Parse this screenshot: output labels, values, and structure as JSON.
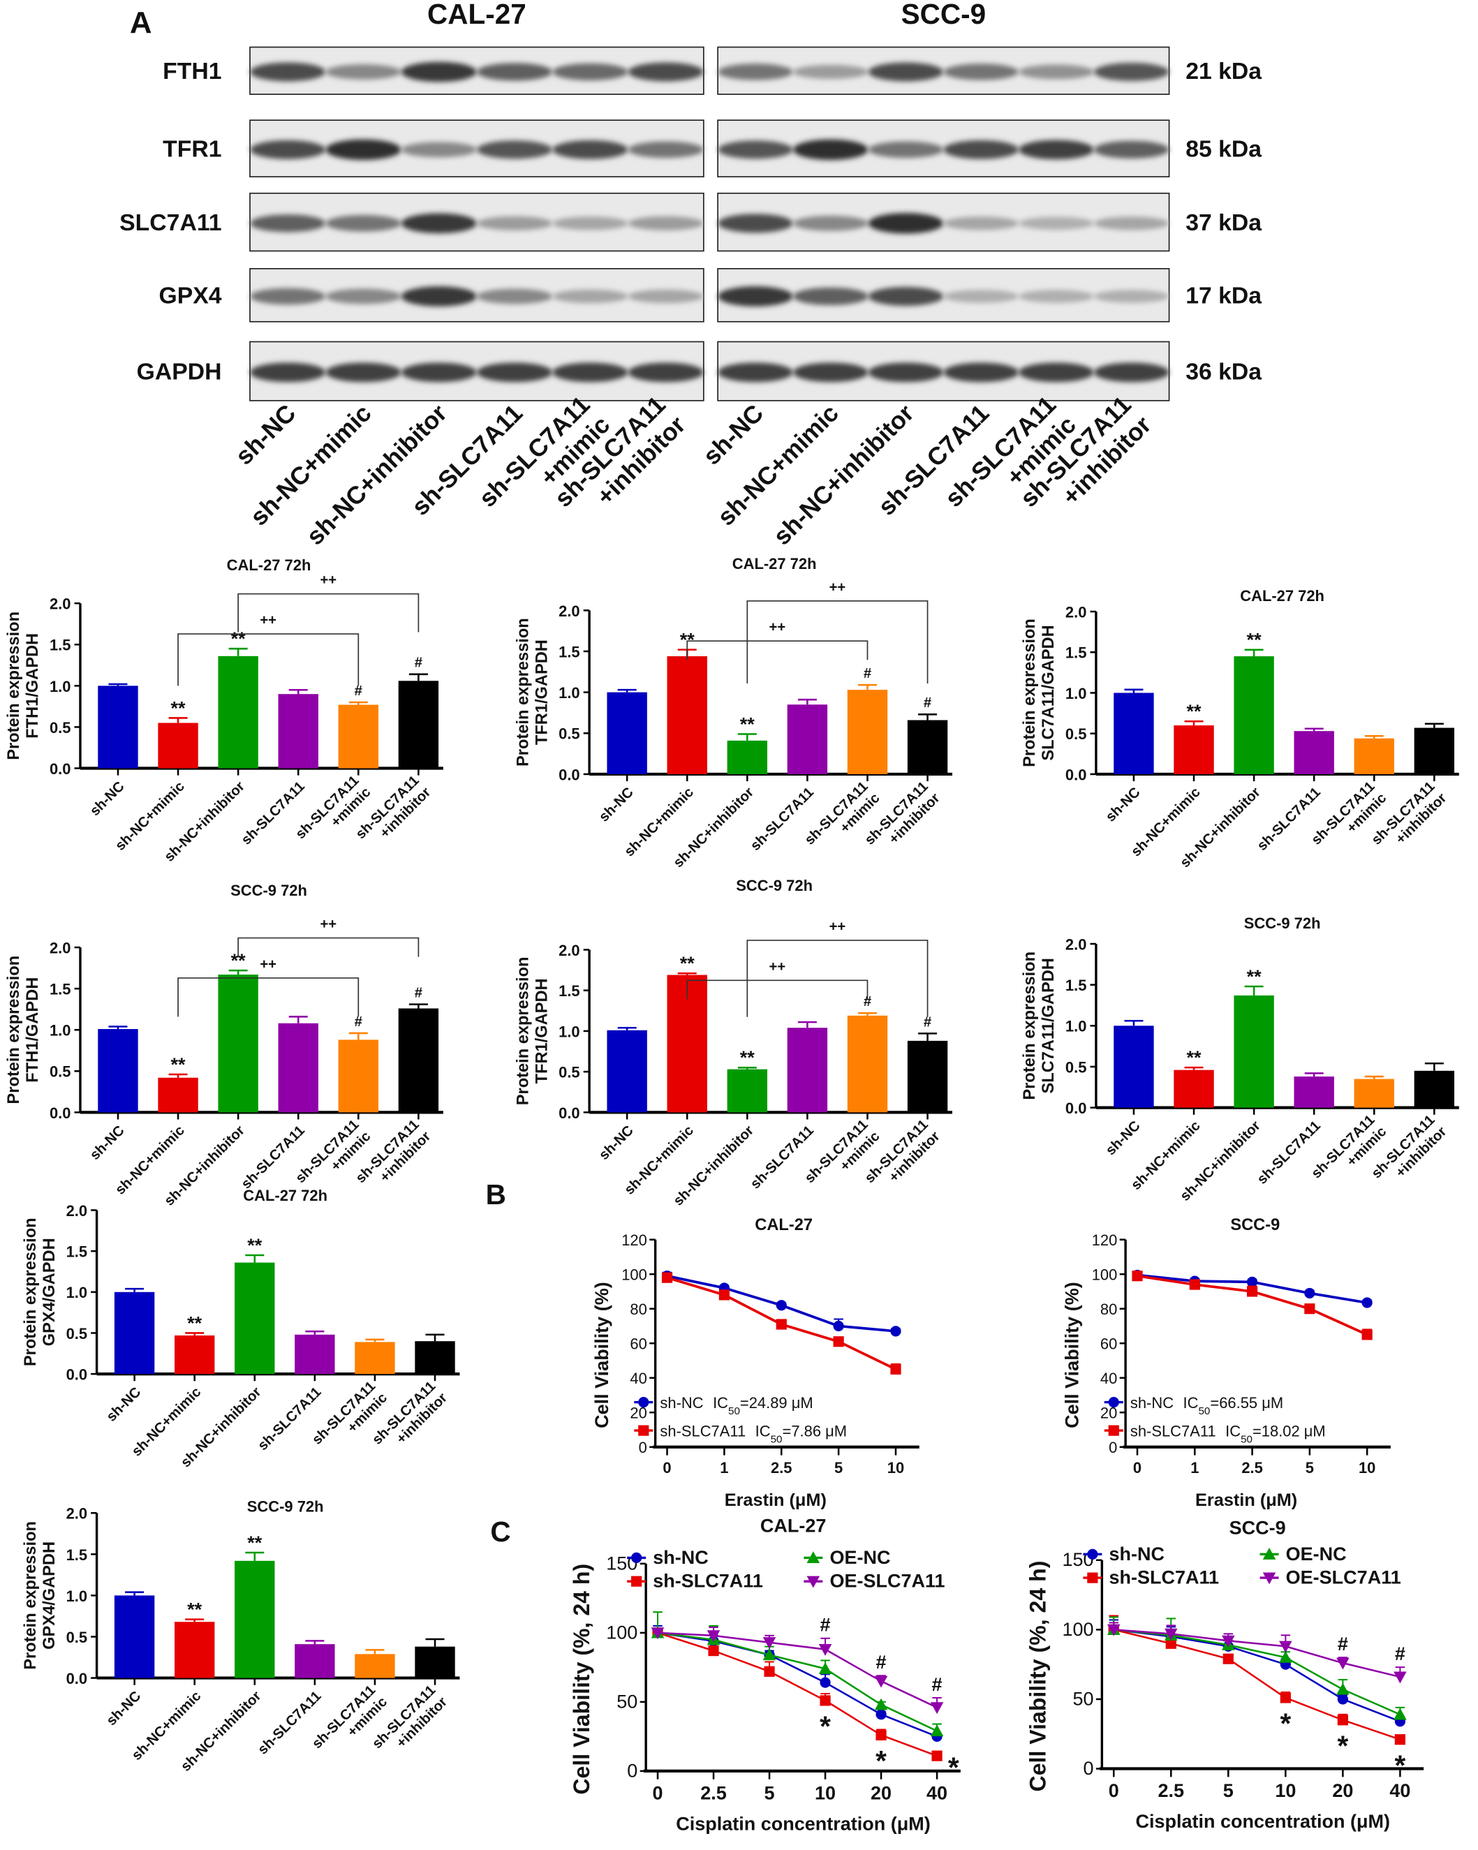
{
  "panel_labels": {
    "a": "A",
    "b": "B",
    "c": "C"
  },
  "blot": {
    "cell_lines": [
      "CAL-27",
      "SCC-9"
    ],
    "lanes": [
      [
        "sh-NC"
      ],
      [
        "sh-NC+mimic"
      ],
      [
        "sh-NC+inhibitor"
      ],
      [
        "sh-SLC7A11"
      ],
      [
        "sh-SLC7A11",
        "+mimic"
      ],
      [
        "sh-SLC7A11",
        "+inhibitor"
      ]
    ],
    "rows": [
      {
        "protein": "FTH1",
        "size": "21 kDa",
        "intensity": [
          [
            0.8,
            0.5,
            0.9,
            0.7,
            0.65,
            0.8
          ],
          [
            0.6,
            0.4,
            0.8,
            0.6,
            0.45,
            0.75
          ]
        ]
      },
      {
        "protein": "TFR1",
        "size": "85 kDa",
        "intensity": [
          [
            0.8,
            0.95,
            0.5,
            0.75,
            0.8,
            0.6
          ],
          [
            0.75,
            0.95,
            0.6,
            0.8,
            0.85,
            0.7
          ]
        ]
      },
      {
        "protein": "SLC7A11",
        "size": "37 kDa",
        "intensity": [
          [
            0.7,
            0.6,
            0.9,
            0.4,
            0.35,
            0.4
          ],
          [
            0.8,
            0.5,
            0.95,
            0.35,
            0.3,
            0.35
          ]
        ]
      },
      {
        "protein": "GPX4",
        "size": "17 kDa",
        "intensity": [
          [
            0.6,
            0.5,
            0.9,
            0.5,
            0.35,
            0.35
          ],
          [
            0.9,
            0.7,
            0.8,
            0.3,
            0.3,
            0.3
          ]
        ]
      },
      {
        "protein": "GAPDH",
        "size": "36 kDa",
        "intensity": [
          [
            0.85,
            0.85,
            0.85,
            0.85,
            0.85,
            0.85
          ],
          [
            0.85,
            0.85,
            0.85,
            0.85,
            0.85,
            0.85
          ]
        ]
      }
    ]
  },
  "bar_colors": [
    "#0000c0",
    "#e60000",
    "#009a00",
    "#9000a8",
    "#ff8000",
    "#000000"
  ],
  "chart_data": [
    {
      "type": "bar",
      "title": "CAL-27 72h",
      "ylabel": [
        "Protein expression",
        "FTH1/GAPDH"
      ],
      "ylim": [
        0,
        2
      ],
      "yticks": [
        "0.0",
        "0.5",
        "1.0",
        "1.5",
        "2.0"
      ],
      "categories": [
        [
          "sh-NC"
        ],
        [
          "sh-NC+mimic"
        ],
        [
          "sh-NC+inhibitor"
        ],
        [
          "sh-SLC7A11"
        ],
        [
          "sh-SLC7A11",
          "+mimic"
        ],
        [
          "sh-SLC7A11",
          "+inhibitor"
        ]
      ],
      "values": [
        1.0,
        0.55,
        1.36,
        0.9,
        0.77,
        1.06
      ],
      "errors": [
        0.02,
        0.06,
        0.09,
        0.05,
        0.03,
        0.08
      ],
      "marks": [
        "",
        "**",
        "**",
        "",
        "#",
        "#"
      ],
      "brackets": [
        {
          "from": 1,
          "to": 4,
          "label": "++"
        },
        {
          "from": 2,
          "to": 5,
          "label": "++"
        }
      ]
    },
    {
      "type": "bar",
      "title": "CAL-27 72h",
      "ylabel": [
        "Protein expression",
        "TFR1/GAPDH"
      ],
      "ylim": [
        0,
        2
      ],
      "yticks": [
        "0.0",
        "0.5",
        "1.0",
        "1.5",
        "2.0"
      ],
      "categories": [
        [
          "sh-NC"
        ],
        [
          "sh-NC+mimic"
        ],
        [
          "sh-NC+inhibitor"
        ],
        [
          "sh-SLC7A11"
        ],
        [
          "sh-SLC7A11",
          "+mimic"
        ],
        [
          "sh-SLC7A11",
          "+inhibitor"
        ]
      ],
      "values": [
        1.0,
        1.44,
        0.41,
        0.85,
        1.03,
        0.66
      ],
      "errors": [
        0.03,
        0.08,
        0.08,
        0.06,
        0.06,
        0.07
      ],
      "marks": [
        "",
        "**",
        "**",
        "",
        "#",
        "#"
      ],
      "brackets": [
        {
          "from": 2,
          "to": 5,
          "label": "++"
        },
        {
          "from": 1,
          "to": 4,
          "label": "++"
        }
      ]
    },
    {
      "type": "bar",
      "title": "CAL-27 72h",
      "ylabel": [
        "Protein expression",
        "SLC7A11/GAPDH"
      ],
      "ylim": [
        0,
        2
      ],
      "yticks": [
        "0.0",
        "0.5",
        "1.0",
        "1.5",
        "2.0"
      ],
      "categories": [
        [
          "sh-NC"
        ],
        [
          "sh-NC+mimic"
        ],
        [
          "sh-NC+inhibitor"
        ],
        [
          "sh-SLC7A11"
        ],
        [
          "sh-SLC7A11",
          "+mimic"
        ],
        [
          "sh-SLC7A11",
          "+inhibitor"
        ]
      ],
      "values": [
        1.0,
        0.6,
        1.45,
        0.53,
        0.44,
        0.57
      ],
      "errors": [
        0.04,
        0.05,
        0.08,
        0.03,
        0.03,
        0.05
      ],
      "marks": [
        "",
        "**",
        "**",
        "",
        "",
        ""
      ],
      "brackets": []
    },
    {
      "type": "bar",
      "title": "SCC-9 72h",
      "ylabel": [
        "Protein expression",
        "FTH1/GAPDH"
      ],
      "ylim": [
        0,
        2
      ],
      "yticks": [
        "0.0",
        "0.5",
        "1.0",
        "1.5",
        "2.0"
      ],
      "categories": [
        [
          "sh-NC"
        ],
        [
          "sh-NC+mimic"
        ],
        [
          "sh-NC+inhibitor"
        ],
        [
          "sh-SLC7A11"
        ],
        [
          "sh-SLC7A11",
          "+mimic"
        ],
        [
          "sh-SLC7A11",
          "+inhibitor"
        ]
      ],
      "values": [
        1.01,
        0.42,
        1.67,
        1.08,
        0.88,
        1.26
      ],
      "errors": [
        0.03,
        0.04,
        0.05,
        0.08,
        0.08,
        0.05
      ],
      "marks": [
        "",
        "**",
        "**",
        "",
        "#",
        "#"
      ],
      "brackets": [
        {
          "from": 1,
          "to": 4,
          "label": "++"
        },
        {
          "from": 2,
          "to": 5,
          "label": "++"
        }
      ]
    },
    {
      "type": "bar",
      "title": "SCC-9 72h",
      "ylabel": [
        "Protein expression",
        "TFR1/GAPDH"
      ],
      "ylim": [
        0,
        2
      ],
      "yticks": [
        "0.0",
        "0.5",
        "1.0",
        "1.5",
        "2.0"
      ],
      "categories": [
        [
          "sh-NC"
        ],
        [
          "sh-NC+mimic"
        ],
        [
          "sh-NC+inhibitor"
        ],
        [
          "sh-SLC7A11"
        ],
        [
          "sh-SLC7A11",
          "+mimic"
        ],
        [
          "sh-SLC7A11",
          "+inhibitor"
        ]
      ],
      "values": [
        1.01,
        1.69,
        0.53,
        1.04,
        1.19,
        0.88
      ],
      "errors": [
        0.03,
        0.02,
        0.02,
        0.07,
        0.03,
        0.09
      ],
      "marks": [
        "",
        "**",
        "**",
        "",
        "#",
        "#"
      ],
      "brackets": [
        {
          "from": 2,
          "to": 5,
          "label": "++"
        },
        {
          "from": 1,
          "to": 4,
          "label": "++"
        }
      ]
    },
    {
      "type": "bar",
      "title": "SCC-9 72h",
      "ylabel": [
        "Protein expression",
        "SLC7A11/GAPDH"
      ],
      "ylim": [
        0,
        2
      ],
      "yticks": [
        "0.0",
        "0.5",
        "1.0",
        "1.5",
        "2.0"
      ],
      "categories": [
        [
          "sh-NC"
        ],
        [
          "sh-NC+mimic"
        ],
        [
          "sh-NC+inhibitor"
        ],
        [
          "sh-SLC7A11"
        ],
        [
          "sh-SLC7A11",
          "+mimic"
        ],
        [
          "sh-SLC7A11",
          "+inhibitor"
        ]
      ],
      "values": [
        1.0,
        0.46,
        1.37,
        0.38,
        0.35,
        0.45
      ],
      "errors": [
        0.06,
        0.03,
        0.11,
        0.04,
        0.03,
        0.09
      ],
      "marks": [
        "",
        "**",
        "**",
        "",
        "",
        ""
      ],
      "brackets": []
    },
    {
      "type": "bar",
      "title": "CAL-27 72h",
      "ylabel": [
        "Protein expression",
        "GPX4/GAPDH"
      ],
      "ylim": [
        0,
        2
      ],
      "yticks": [
        "0.0",
        "0.5",
        "1.0",
        "1.5",
        "2.0"
      ],
      "categories": [
        [
          "sh-NC"
        ],
        [
          "sh-NC+mimic"
        ],
        [
          "sh-NC+inhibitor"
        ],
        [
          "sh-SLC7A11"
        ],
        [
          "sh-SLC7A11",
          "+mimic"
        ],
        [
          "sh-SLC7A11",
          "+inhibitor"
        ]
      ],
      "values": [
        1.0,
        0.47,
        1.36,
        0.48,
        0.39,
        0.4
      ],
      "errors": [
        0.04,
        0.03,
        0.09,
        0.04,
        0.03,
        0.08
      ],
      "marks": [
        "",
        "**",
        "**",
        "",
        "",
        ""
      ],
      "brackets": []
    },
    {
      "type": "bar",
      "title": "SCC-9 72h",
      "ylabel": [
        "Protein expression",
        "GPX4/GAPDH"
      ],
      "ylim": [
        0,
        2
      ],
      "yticks": [
        "0.0",
        "0.5",
        "1.0",
        "1.5",
        "2.0"
      ],
      "categories": [
        [
          "sh-NC"
        ],
        [
          "sh-NC+mimic"
        ],
        [
          "sh-NC+inhibitor"
        ],
        [
          "sh-SLC7A11"
        ],
        [
          "sh-SLC7A11",
          "+mimic"
        ],
        [
          "sh-SLC7A11",
          "+inhibitor"
        ]
      ],
      "values": [
        1.0,
        0.68,
        1.42,
        0.41,
        0.29,
        0.38
      ],
      "errors": [
        0.04,
        0.03,
        0.1,
        0.04,
        0.05,
        0.09
      ],
      "marks": [
        "",
        "**",
        "**",
        "",
        "",
        ""
      ],
      "brackets": []
    },
    {
      "type": "line",
      "title": "CAL-27",
      "ylabel": "Cell Viability (%)",
      "xlabel": "Erastin (μM)",
      "ylim": [
        0,
        120
      ],
      "yticks": [
        "0",
        "20",
        "40",
        "60",
        "80",
        "100",
        "120"
      ],
      "x": [
        "0",
        "1",
        "2.5",
        "5",
        "10"
      ],
      "series": [
        {
          "name": "sh-NC",
          "suffix": "=24.89 μM",
          "color": "#0000c0",
          "marker": "circle",
          "values": [
            99,
            92,
            82,
            70,
            67
          ],
          "errors": [
            2,
            1.5,
            1.5,
            4,
            1.5
          ]
        },
        {
          "name": "sh-SLC7A11",
          "suffix": "=7.86 μM",
          "color": "#e60000",
          "marker": "square",
          "values": [
            98,
            88,
            71,
            61,
            45
          ],
          "errors": [
            2,
            1.5,
            2,
            1.5,
            3
          ]
        }
      ],
      "ic_label": "IC",
      "ic_sub": "50"
    },
    {
      "type": "line",
      "title": "SCC-9",
      "ylabel": "Cell Viability (%)",
      "xlabel": "Erastin (μM)",
      "ylim": [
        0,
        120
      ],
      "yticks": [
        "0",
        "20",
        "40",
        "60",
        "80",
        "100",
        "120"
      ],
      "x": [
        "0",
        "1",
        "2.5",
        "5",
        "10"
      ],
      "series": [
        {
          "name": "sh-NC",
          "suffix": "=66.55 μM",
          "color": "#0000c0",
          "marker": "circle",
          "values": [
            99.5,
            96,
            95.5,
            89,
            83.5
          ],
          "errors": [
            1.5,
            1.5,
            1.5,
            1.5,
            1.5
          ]
        },
        {
          "name": "sh-SLC7A11",
          "suffix": "=18.02 μM",
          "color": "#e60000",
          "marker": "square",
          "values": [
            99,
            94,
            90,
            80,
            65
          ],
          "errors": [
            1.5,
            1.5,
            3,
            2,
            3
          ]
        }
      ],
      "ic_label": "IC",
      "ic_sub": "50"
    },
    {
      "type": "line",
      "title": "CAL-27",
      "ylabel": "Cell Viability (%, 24 h)",
      "xlabel": "Cisplatin concentration (μM)",
      "ylim": [
        0,
        150
      ],
      "yticks": [
        "0",
        "50",
        "100",
        "150"
      ],
      "x": [
        "0",
        "2.5",
        "5",
        "10",
        "20",
        "40"
      ],
      "series": [
        {
          "name": "sh-NC",
          "color": "#0000c0",
          "marker": "circle",
          "values": [
            100,
            94,
            84,
            64,
            41,
            25
          ],
          "errors": [
            5,
            4,
            3,
            6,
            2,
            2
          ]
        },
        {
          "name": "sh-SLC7A11",
          "color": "#e60000",
          "marker": "square",
          "values": [
            100,
            87,
            72,
            51,
            26,
            11
          ],
          "errors": [
            3,
            3,
            7,
            5,
            4,
            1
          ]
        },
        {
          "name": "OE-NC",
          "color": "#009a00",
          "marker": "triangle-up",
          "values": [
            100,
            95,
            84,
            74,
            48,
            29
          ],
          "errors": [
            15,
            10,
            6,
            6,
            2,
            5
          ]
        },
        {
          "name": "OE-SLC7A11",
          "color": "#9000a8",
          "marker": "triangle-down",
          "values": [
            100,
            98,
            93,
            88,
            65,
            46
          ],
          "errors": [
            3,
            6,
            5,
            8,
            4,
            7
          ]
        }
      ],
      "annotations": [
        {
          "x": "10",
          "mark": "#",
          "at": "above",
          "series": 3
        },
        {
          "x": "20",
          "mark": "#",
          "at": "above",
          "series": 3
        },
        {
          "x": "40",
          "mark": "#",
          "at": "above",
          "series": 3
        },
        {
          "x": "10",
          "mark": "*",
          "at": "below",
          "series": 1
        },
        {
          "x": "20",
          "mark": "*",
          "at": "below",
          "series": 1
        },
        {
          "x": "40",
          "mark": "*",
          "at": "right",
          "series": 1
        }
      ]
    },
    {
      "type": "line",
      "title": "SCC-9",
      "ylabel": "Cell Viability (%, 24 h)",
      "xlabel": "Cisplatin concentration (μM)",
      "ylim": [
        0,
        150
      ],
      "yticks": [
        "0",
        "50",
        "100",
        "150"
      ],
      "x": [
        "0",
        "2.5",
        "5",
        "10",
        "20",
        "40"
      ],
      "series": [
        {
          "name": "sh-NC",
          "color": "#0000c0",
          "marker": "circle",
          "values": [
            100,
            95,
            88,
            75,
            50,
            34
          ],
          "errors": [
            7,
            7,
            4,
            4,
            3,
            2
          ]
        },
        {
          "name": "sh-SLC7A11",
          "color": "#e60000",
          "marker": "square",
          "values": [
            100,
            90,
            79,
            51,
            35,
            21
          ],
          "errors": [
            10,
            3,
            3,
            4,
            4,
            2
          ]
        },
        {
          "name": "OE-NC",
          "color": "#009a00",
          "marker": "triangle-up",
          "values": [
            100,
            96,
            89,
            80,
            57,
            39
          ],
          "errors": [
            9,
            12,
            5,
            4,
            7,
            5
          ]
        },
        {
          "name": "OE-SLC7A11",
          "color": "#9000a8",
          "marker": "triangle-down",
          "values": [
            100,
            97,
            92,
            88,
            76,
            66
          ],
          "errors": [
            5,
            6,
            5,
            8,
            4,
            7
          ]
        }
      ],
      "annotations": [
        {
          "x": "20",
          "mark": "#",
          "at": "above",
          "series": 3
        },
        {
          "x": "40",
          "mark": "#",
          "at": "above",
          "series": 3
        },
        {
          "x": "10",
          "mark": "*",
          "at": "below",
          "series": 1
        },
        {
          "x": "20",
          "mark": "*",
          "at": "below",
          "series": 1
        },
        {
          "x": "40",
          "mark": "*",
          "at": "below",
          "series": 1
        }
      ]
    }
  ]
}
